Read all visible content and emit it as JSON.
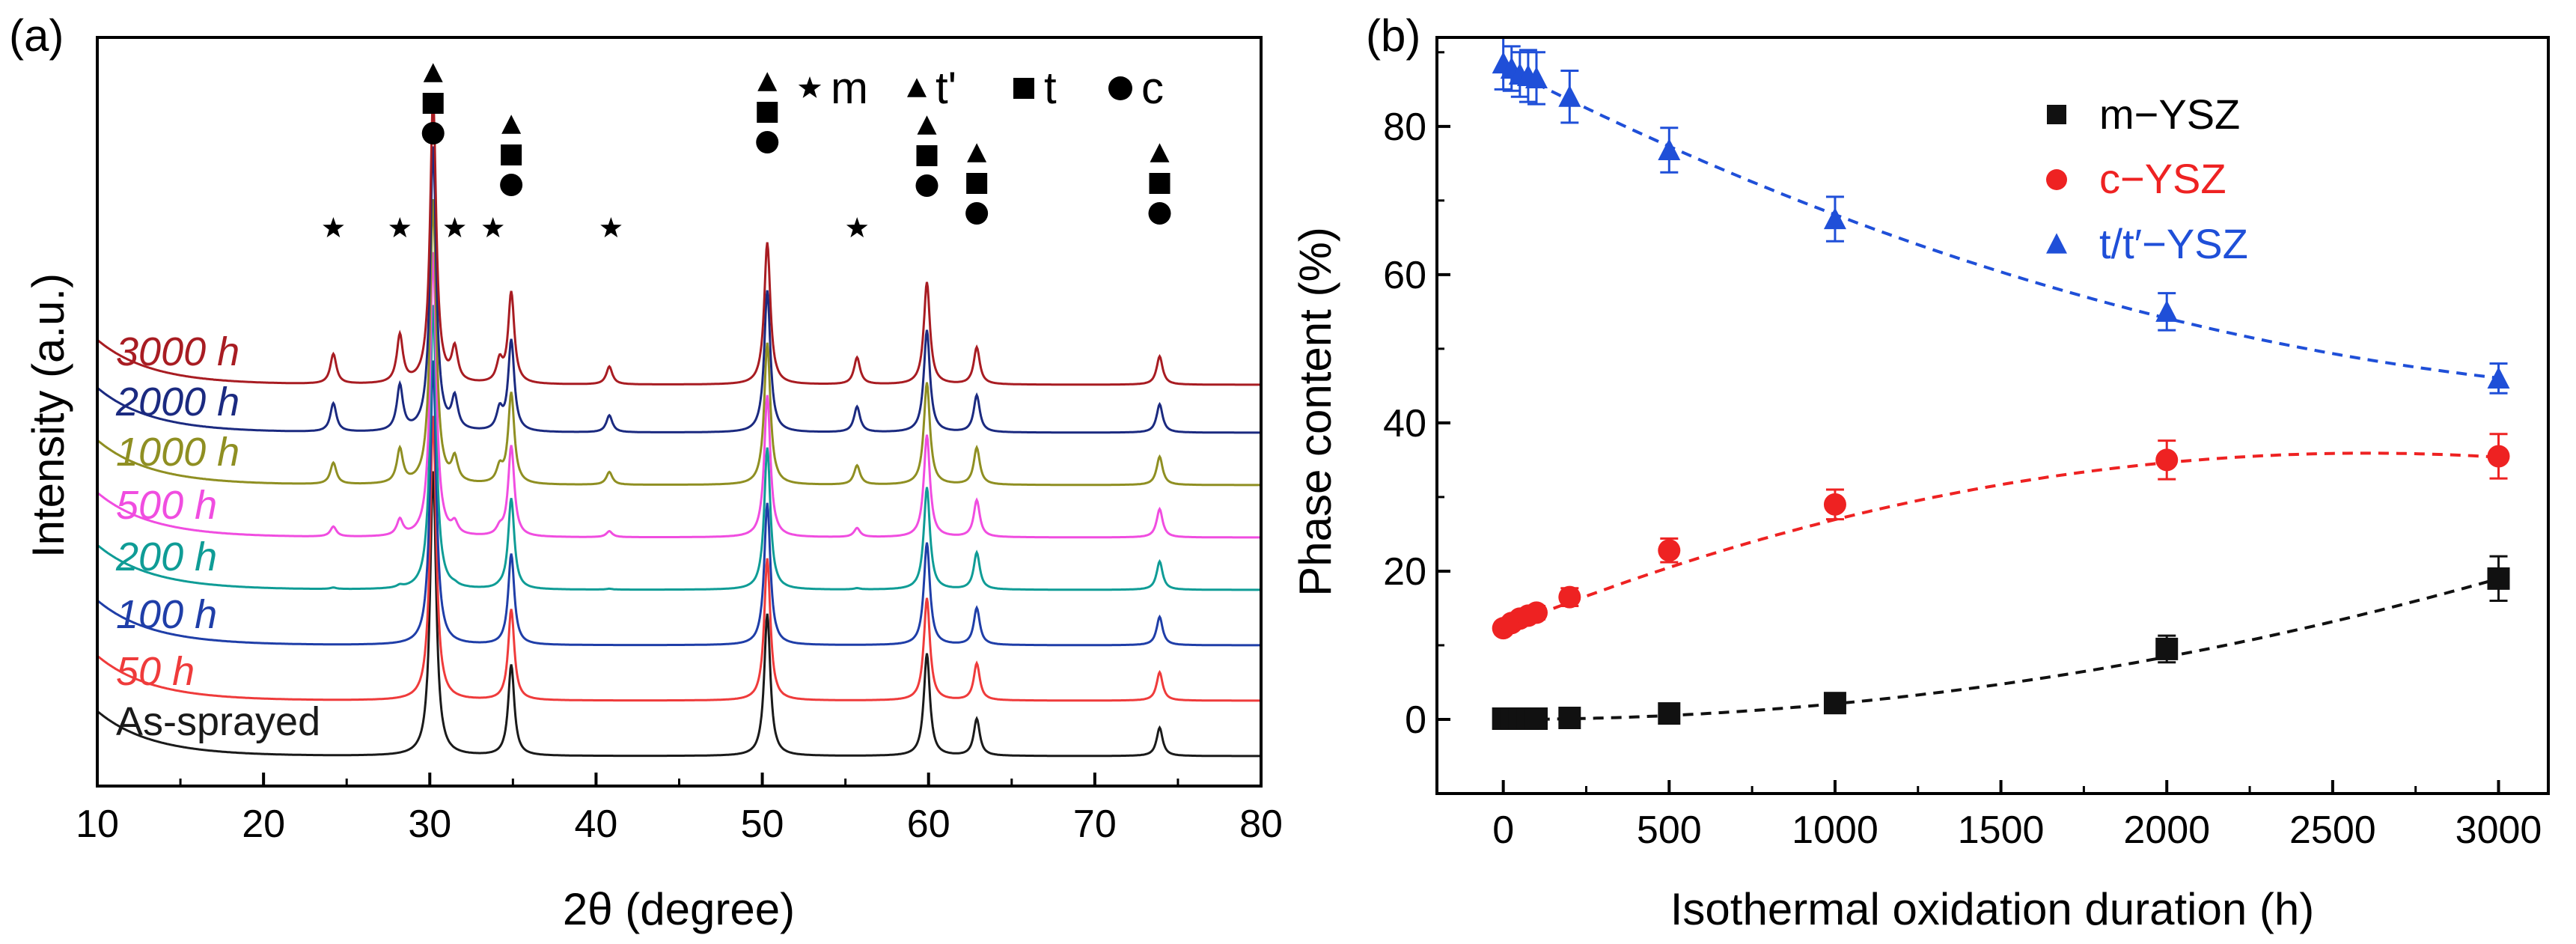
{
  "chart_data": [
    {
      "type": "line",
      "panel_label": "(a)",
      "xlabel": "2θ (degree)",
      "ylabel": "Intensity (a.u.)",
      "xlim": [
        10,
        80
      ],
      "xticks": [
        10,
        20,
        30,
        40,
        50,
        60,
        70,
        80
      ],
      "legend": {
        "position": "top-right",
        "entries": [
          {
            "symbol": "star",
            "label": "m"
          },
          {
            "symbol": "triangle",
            "label": "t'"
          },
          {
            "symbol": "square",
            "label": "t"
          },
          {
            "symbol": "circle",
            "label": "c"
          }
        ]
      },
      "peaks": {
        "main": [
          {
            "x": 30.2,
            "h": 1.0
          },
          {
            "x": 34.9,
            "h": 0.32
          },
          {
            "x": 50.3,
            "h": 0.5
          },
          {
            "x": 59.9,
            "h": 0.36
          },
          {
            "x": 62.9,
            "h": 0.13
          },
          {
            "x": 73.9,
            "h": 0.1
          }
        ],
        "monoclinic": [
          {
            "x": 24.2,
            "h": 0.1
          },
          {
            "x": 28.2,
            "h": 0.16
          },
          {
            "x": 31.5,
            "h": 0.11
          },
          {
            "x": 34.2,
            "h": 0.07
          },
          {
            "x": 40.8,
            "h": 0.06
          },
          {
            "x": 55.7,
            "h": 0.09
          }
        ]
      },
      "series": [
        {
          "name": "As-sprayed",
          "color": "#1a1a1a",
          "m_scale": 0.0
        },
        {
          "name": "50 h",
          "color": "#ef3b3b",
          "m_scale": 0.0
        },
        {
          "name": "100 h",
          "color": "#1f3ea8",
          "m_scale": 0.0
        },
        {
          "name": "200 h",
          "color": "#0f9c96",
          "m_scale": 0.05
        },
        {
          "name": "500 h",
          "color": "#f04de0",
          "m_scale": 0.35
        },
        {
          "name": "1000 h",
          "color": "#8f8f22",
          "m_scale": 0.75
        },
        {
          "name": "2000 h",
          "color": "#1b2a80",
          "m_scale": 1.0
        },
        {
          "name": "3000 h",
          "color": "#a81c22",
          "m_scale": 1.05
        }
      ],
      "phase_markers": [
        {
          "x": 24.2,
          "symbols": [
            "star"
          ]
        },
        {
          "x": 28.2,
          "symbols": [
            "star"
          ]
        },
        {
          "x": 30.2,
          "symbols": [
            "triangle",
            "square",
            "circle"
          ]
        },
        {
          "x": 31.5,
          "symbols": [
            "star"
          ]
        },
        {
          "x": 33.8,
          "symbols": [
            "star"
          ]
        },
        {
          "x": 34.9,
          "symbols": [
            "triangle",
            "square",
            "circle"
          ]
        },
        {
          "x": 40.9,
          "symbols": [
            "star"
          ]
        },
        {
          "x": 50.3,
          "symbols": [
            "triangle",
            "square",
            "circle"
          ]
        },
        {
          "x": 55.7,
          "symbols": [
            "star"
          ]
        },
        {
          "x": 59.9,
          "symbols": [
            "triangle",
            "square",
            "circle"
          ]
        },
        {
          "x": 62.9,
          "symbols": [
            "triangle",
            "square",
            "circle"
          ]
        },
        {
          "x": 73.9,
          "symbols": [
            "triangle",
            "square",
            "circle"
          ]
        }
      ]
    },
    {
      "type": "scatter",
      "panel_label": "(b)",
      "xlabel": "Isothermal oxidation duration (h)",
      "ylabel": "Phase content (%)",
      "xlim": [
        -200,
        3150
      ],
      "ylim": [
        -10,
        92
      ],
      "xticks": [
        0,
        500,
        1000,
        1500,
        2000,
        2500,
        3000
      ],
      "yticks": [
        0,
        20,
        40,
        60,
        80
      ],
      "legend_position": "top-right",
      "series": [
        {
          "name": "m−YSZ",
          "color": "#111111",
          "marker": "square",
          "x": [
            0,
            25,
            50,
            75,
            100,
            200,
            500,
            1000,
            2000,
            3000
          ],
          "y": [
            0.1,
            0.1,
            0.1,
            0.1,
            0.1,
            0.2,
            0.8,
            2.2,
            9.5,
            19.0
          ],
          "err": [
            0.5,
            0.5,
            0.5,
            0.5,
            0.5,
            0.5,
            0.8,
            1.0,
            1.8,
            3.0
          ],
          "fit_x": [
            0,
            3000
          ],
          "fit_coeffs": [
            0.0,
            0.0,
            2.11e-06
          ]
        },
        {
          "name": "c−YSZ",
          "color": "#ee2222",
          "marker": "circle",
          "x": [
            0,
            25,
            50,
            75,
            100,
            200,
            500,
            1000,
            2000,
            3000
          ],
          "y": [
            12.3,
            13.0,
            13.6,
            14.0,
            14.4,
            16.5,
            22.8,
            29.0,
            35.0,
            35.5
          ],
          "err": [
            0.8,
            0.8,
            0.8,
            0.8,
            0.9,
            1.2,
            1.6,
            2.0,
            2.6,
            3.0
          ],
          "fit_x": [
            0,
            3000
          ],
          "fit_coeffs": [
            12.3,
            0.01813,
            -3.48e-06,
            0.0
          ]
        },
        {
          "name": "t/t′−YSZ",
          "color": "#1f4fd8",
          "marker": "triangle",
          "x": [
            0,
            25,
            50,
            75,
            100,
            200,
            500,
            1000,
            2000,
            3000
          ],
          "y": [
            88.5,
            87.8,
            87.0,
            86.8,
            86.5,
            84.0,
            76.8,
            67.5,
            55.0,
            46.0
          ],
          "err": [
            3.5,
            3.0,
            3.0,
            3.5,
            3.5,
            3.5,
            3.0,
            3.0,
            2.5,
            2.0
          ],
          "fit_x": [
            0,
            3000
          ],
          "fit_coeffs": [
            88.0,
            -0.02286,
            2.96e-06
          ]
        }
      ]
    }
  ]
}
